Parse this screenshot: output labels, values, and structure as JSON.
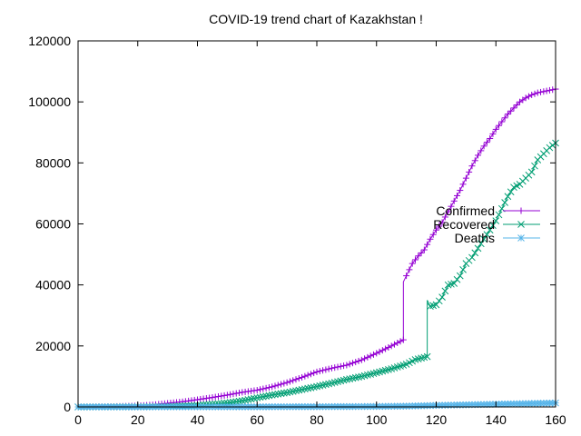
{
  "chart_data": {
    "type": "line",
    "title": "COVID-19 trend chart of Kazakhstan !",
    "xlabel": "",
    "ylabel": "",
    "xlim": [
      0,
      160
    ],
    "ylim": [
      0,
      120000
    ],
    "x_ticks": [
      0,
      20,
      40,
      60,
      80,
      100,
      120,
      140,
      160
    ],
    "y_ticks": [
      0,
      20000,
      40000,
      60000,
      80000,
      100000,
      120000
    ],
    "grid": false,
    "legend_position": "right-middle",
    "series": [
      {
        "name": "Confirmed",
        "color": "#9400d3",
        "marker": "plus",
        "points": [
          [
            0,
            0
          ],
          [
            10,
            100
          ],
          [
            20,
            350
          ],
          [
            25,
            700
          ],
          [
            30,
            1200
          ],
          [
            35,
            1700
          ],
          [
            40,
            2400
          ],
          [
            45,
            3100
          ],
          [
            50,
            3900
          ],
          [
            55,
            4800
          ],
          [
            60,
            5500
          ],
          [
            65,
            6600
          ],
          [
            70,
            8000
          ],
          [
            75,
            9700
          ],
          [
            80,
            11500
          ],
          [
            85,
            12700
          ],
          [
            90,
            13700
          ],
          [
            95,
            15400
          ],
          [
            100,
            17600
          ],
          [
            105,
            20000
          ],
          [
            109,
            22000
          ],
          [
            109,
            41000
          ],
          [
            110,
            43000
          ],
          [
            112,
            47000
          ],
          [
            114,
            49500
          ],
          [
            116,
            51500
          ],
          [
            118,
            55000
          ],
          [
            120,
            58000
          ],
          [
            122,
            60500
          ],
          [
            124,
            64000
          ],
          [
            126,
            67500
          ],
          [
            128,
            71000
          ],
          [
            130,
            75000
          ],
          [
            132,
            79000
          ],
          [
            134,
            82500
          ],
          [
            136,
            85500
          ],
          [
            138,
            88000
          ],
          [
            140,
            91000
          ],
          [
            142,
            93500
          ],
          [
            144,
            96000
          ],
          [
            146,
            98000
          ],
          [
            148,
            100000
          ],
          [
            150,
            101300
          ],
          [
            152,
            102300
          ],
          [
            154,
            103000
          ],
          [
            156,
            103400
          ],
          [
            158,
            103800
          ],
          [
            160,
            104200
          ]
        ]
      },
      {
        "name": "Recovered",
        "color": "#009e73",
        "marker": "cross",
        "points": [
          [
            0,
            0
          ],
          [
            20,
            50
          ],
          [
            30,
            150
          ],
          [
            40,
            500
          ],
          [
            45,
            900
          ],
          [
            50,
            1300
          ],
          [
            55,
            2000
          ],
          [
            60,
            3000
          ],
          [
            65,
            3900
          ],
          [
            70,
            4700
          ],
          [
            75,
            5700
          ],
          [
            80,
            6700
          ],
          [
            85,
            7800
          ],
          [
            90,
            9000
          ],
          [
            95,
            10000
          ],
          [
            100,
            11200
          ],
          [
            105,
            12500
          ],
          [
            110,
            14000
          ],
          [
            113,
            15500
          ],
          [
            117,
            16500
          ],
          [
            117,
            35000
          ],
          [
            118,
            33000
          ],
          [
            120,
            33500
          ],
          [
            122,
            36000
          ],
          [
            124,
            40000
          ],
          [
            126,
            40500
          ],
          [
            128,
            43000
          ],
          [
            130,
            47000
          ],
          [
            132,
            49000
          ],
          [
            134,
            52000
          ],
          [
            136,
            55000
          ],
          [
            138,
            58000
          ],
          [
            140,
            61000
          ],
          [
            142,
            65000
          ],
          [
            144,
            69000
          ],
          [
            146,
            72000
          ],
          [
            148,
            73000
          ],
          [
            150,
            75000
          ],
          [
            152,
            77000
          ],
          [
            154,
            81000
          ],
          [
            156,
            83000
          ],
          [
            158,
            85000
          ],
          [
            160,
            86500
          ]
        ]
      },
      {
        "name": "Deaths",
        "color": "#56b4e9",
        "marker": "star",
        "points": [
          [
            0,
            0
          ],
          [
            40,
            20
          ],
          [
            60,
            40
          ],
          [
            80,
            80
          ],
          [
            100,
            150
          ],
          [
            110,
            250
          ],
          [
            120,
            500
          ],
          [
            130,
            700
          ],
          [
            140,
            900
          ],
          [
            150,
            1100
          ],
          [
            160,
            1300
          ]
        ]
      }
    ]
  }
}
